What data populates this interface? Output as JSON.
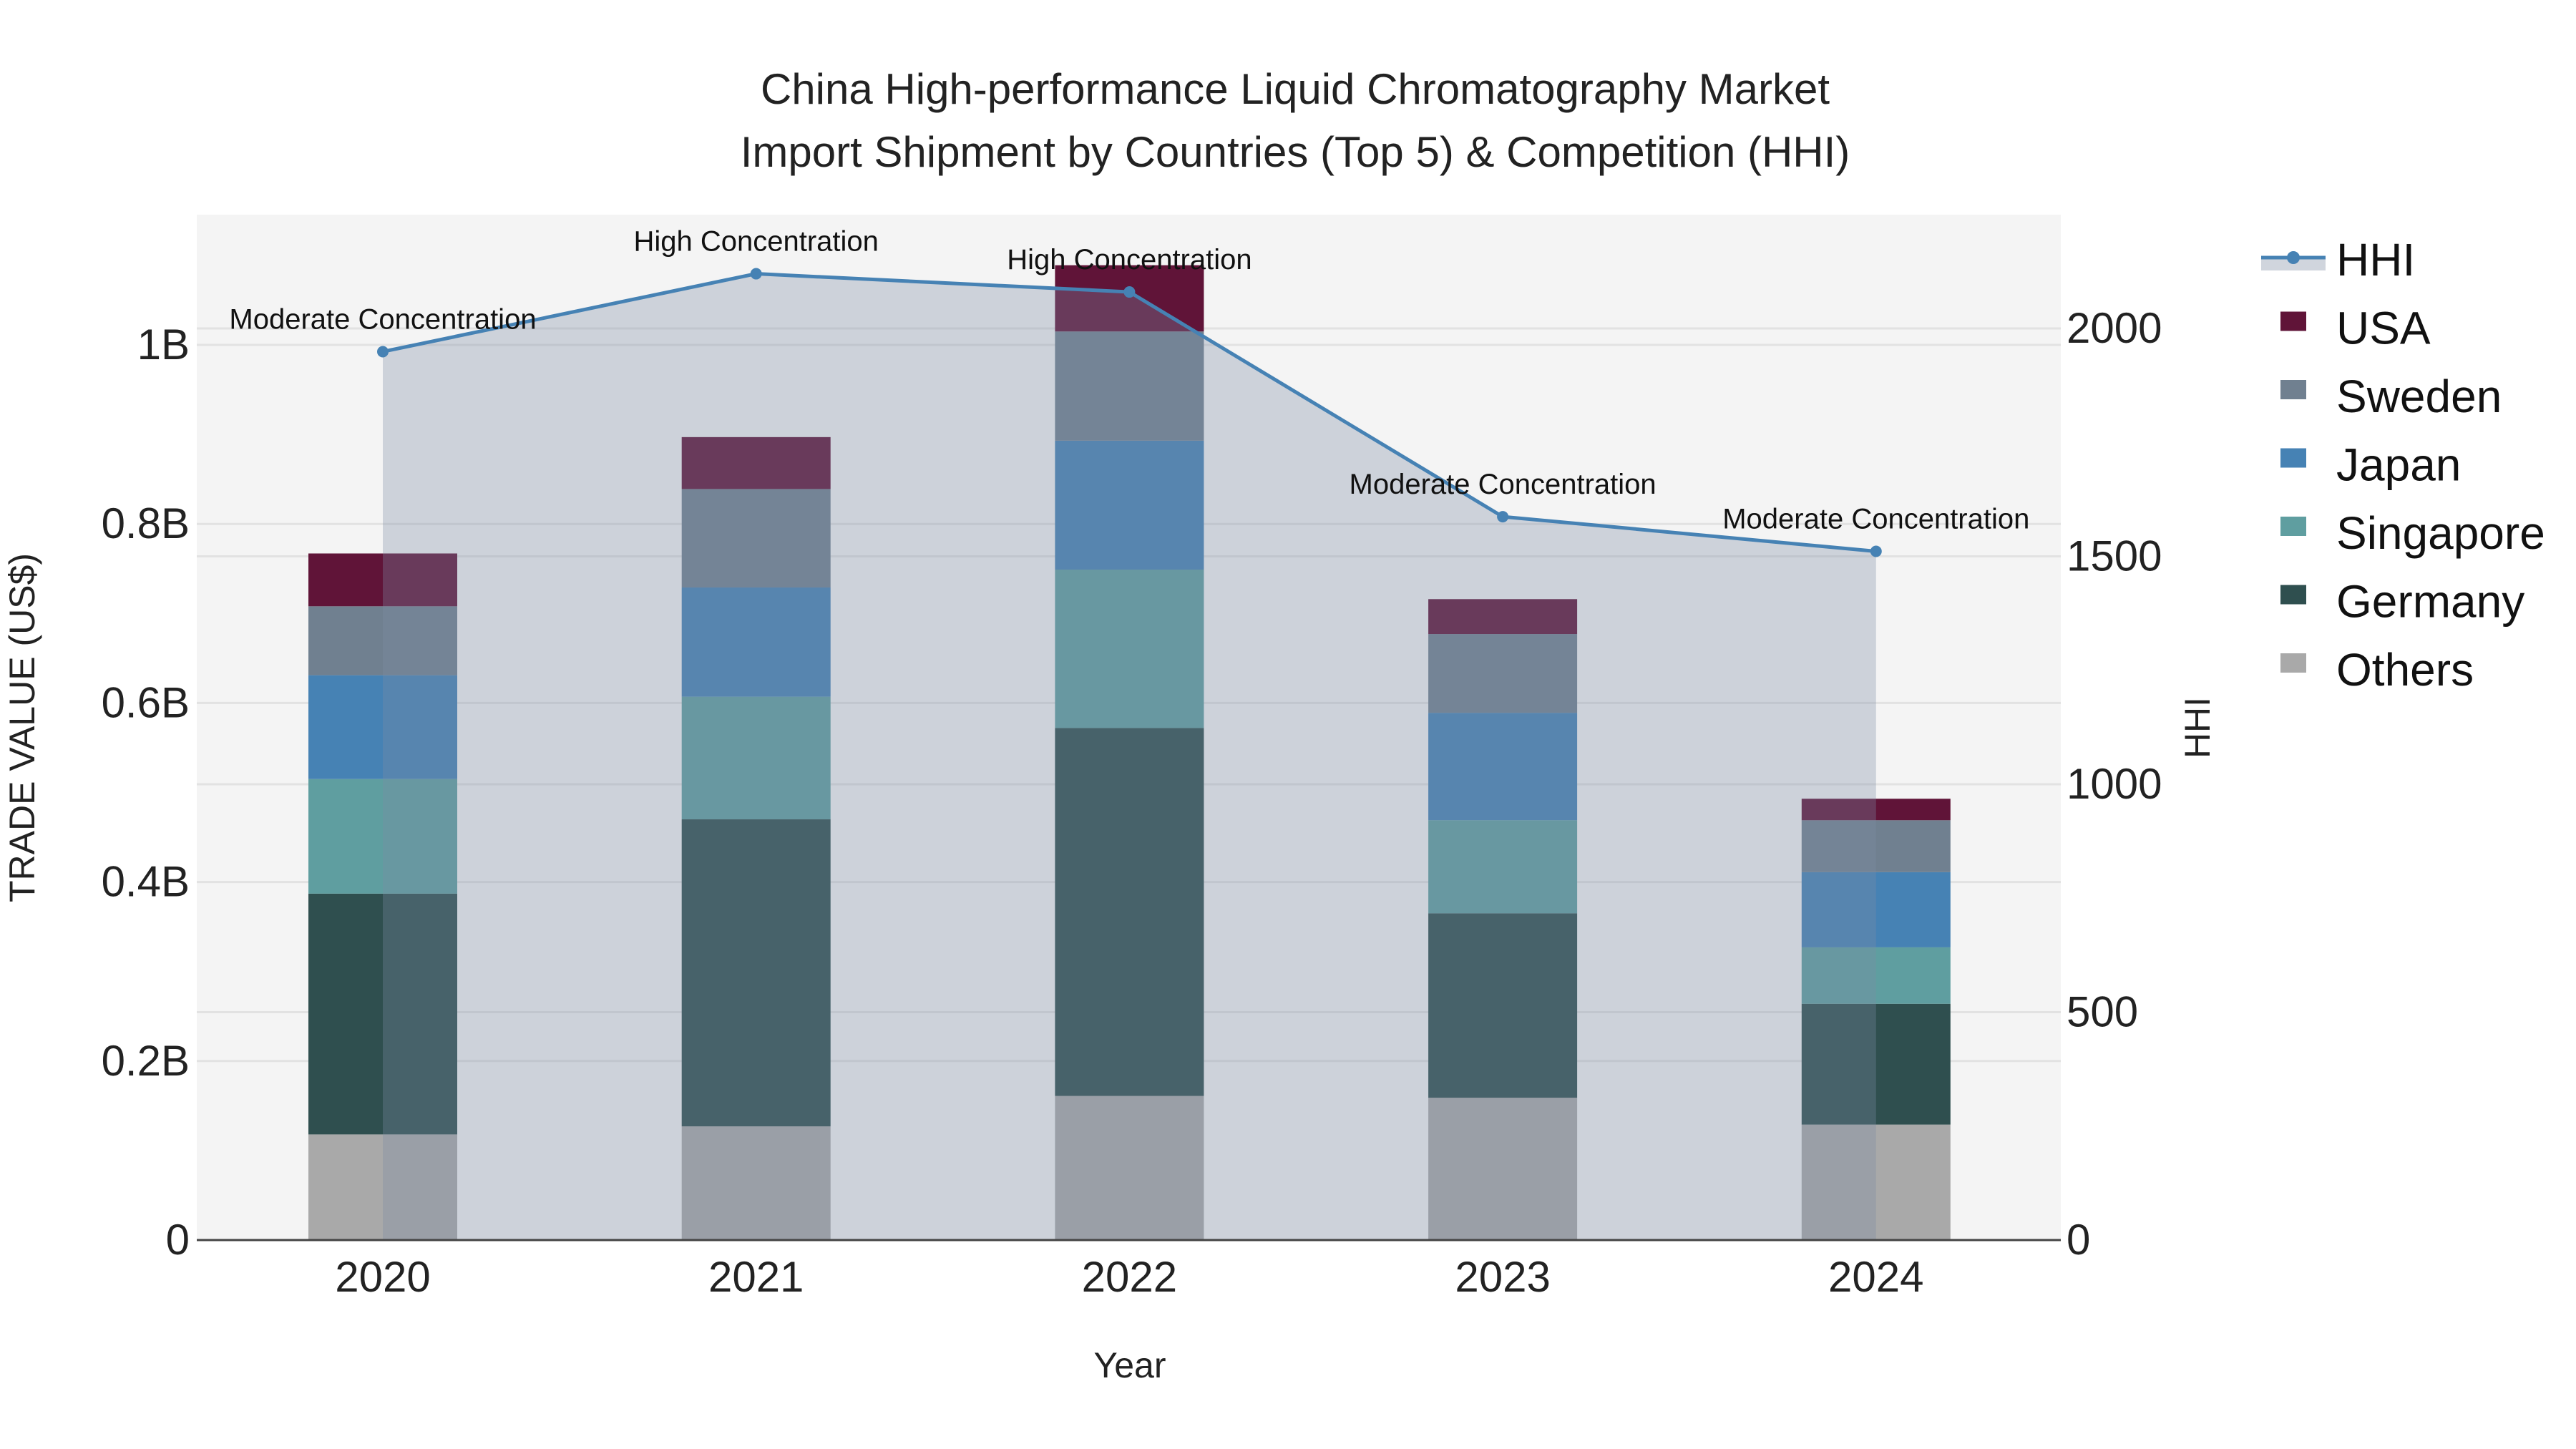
{
  "chart_data": {
    "type": "bar",
    "title_line1": "China High-performance Liquid Chromatography Market",
    "title_line2": "Import Shipment by Countries (Top 5) & Competition (HHI)",
    "xlabel": "Year",
    "ylabel": "TRADE VALUE (US$)",
    "y2label": "HHI",
    "categories": [
      "2020",
      "2021",
      "2022",
      "2023",
      "2024"
    ],
    "ylim": [
      0,
      1.15
    ],
    "y_unit": "billion US$",
    "yticks": [
      0,
      0.2,
      0.4,
      0.6,
      0.8,
      1.0
    ],
    "ytick_labels": [
      "0",
      "0.2B",
      "0.4B",
      "0.6B",
      "0.8B",
      "1B"
    ],
    "y2lim": [
      0,
      2250
    ],
    "y2ticks": [
      0,
      500,
      1000,
      1500,
      2000
    ],
    "y2tick_labels": [
      "0",
      "500",
      "1000",
      "1500",
      "2000"
    ],
    "grid": true,
    "legend_position": "right",
    "series": [
      {
        "name": "Others",
        "color": "#a9a9a9",
        "values": [
          0.118,
          0.127,
          0.161,
          0.159,
          0.129
        ]
      },
      {
        "name": "Germany",
        "color": "#2f4f4f",
        "values": [
          0.269,
          0.343,
          0.411,
          0.206,
          0.135
        ]
      },
      {
        "name": "Singapore",
        "color": "#5f9ea0",
        "values": [
          0.128,
          0.137,
          0.177,
          0.104,
          0.063
        ]
      },
      {
        "name": "Japan",
        "color": "#4682b4",
        "values": [
          0.116,
          0.122,
          0.144,
          0.12,
          0.084
        ]
      },
      {
        "name": "Sweden",
        "color": "#708090",
        "values": [
          0.077,
          0.11,
          0.122,
          0.088,
          0.058
        ]
      },
      {
        "name": "USA",
        "color": "#601438",
        "values": [
          0.059,
          0.058,
          0.074,
          0.039,
          0.024
        ]
      }
    ],
    "hhi": {
      "name": "HHI",
      "color": "#4682b4",
      "values": [
        1949,
        2120,
        2080,
        1587,
        1511
      ],
      "annotations": [
        "Moderate Concentration",
        "High Concentration",
        "High Concentration",
        "Moderate Concentration",
        "Moderate Concentration"
      ]
    },
    "legend": [
      "HHI",
      "USA",
      "Sweden",
      "Japan",
      "Singapore",
      "Germany",
      "Others"
    ]
  }
}
